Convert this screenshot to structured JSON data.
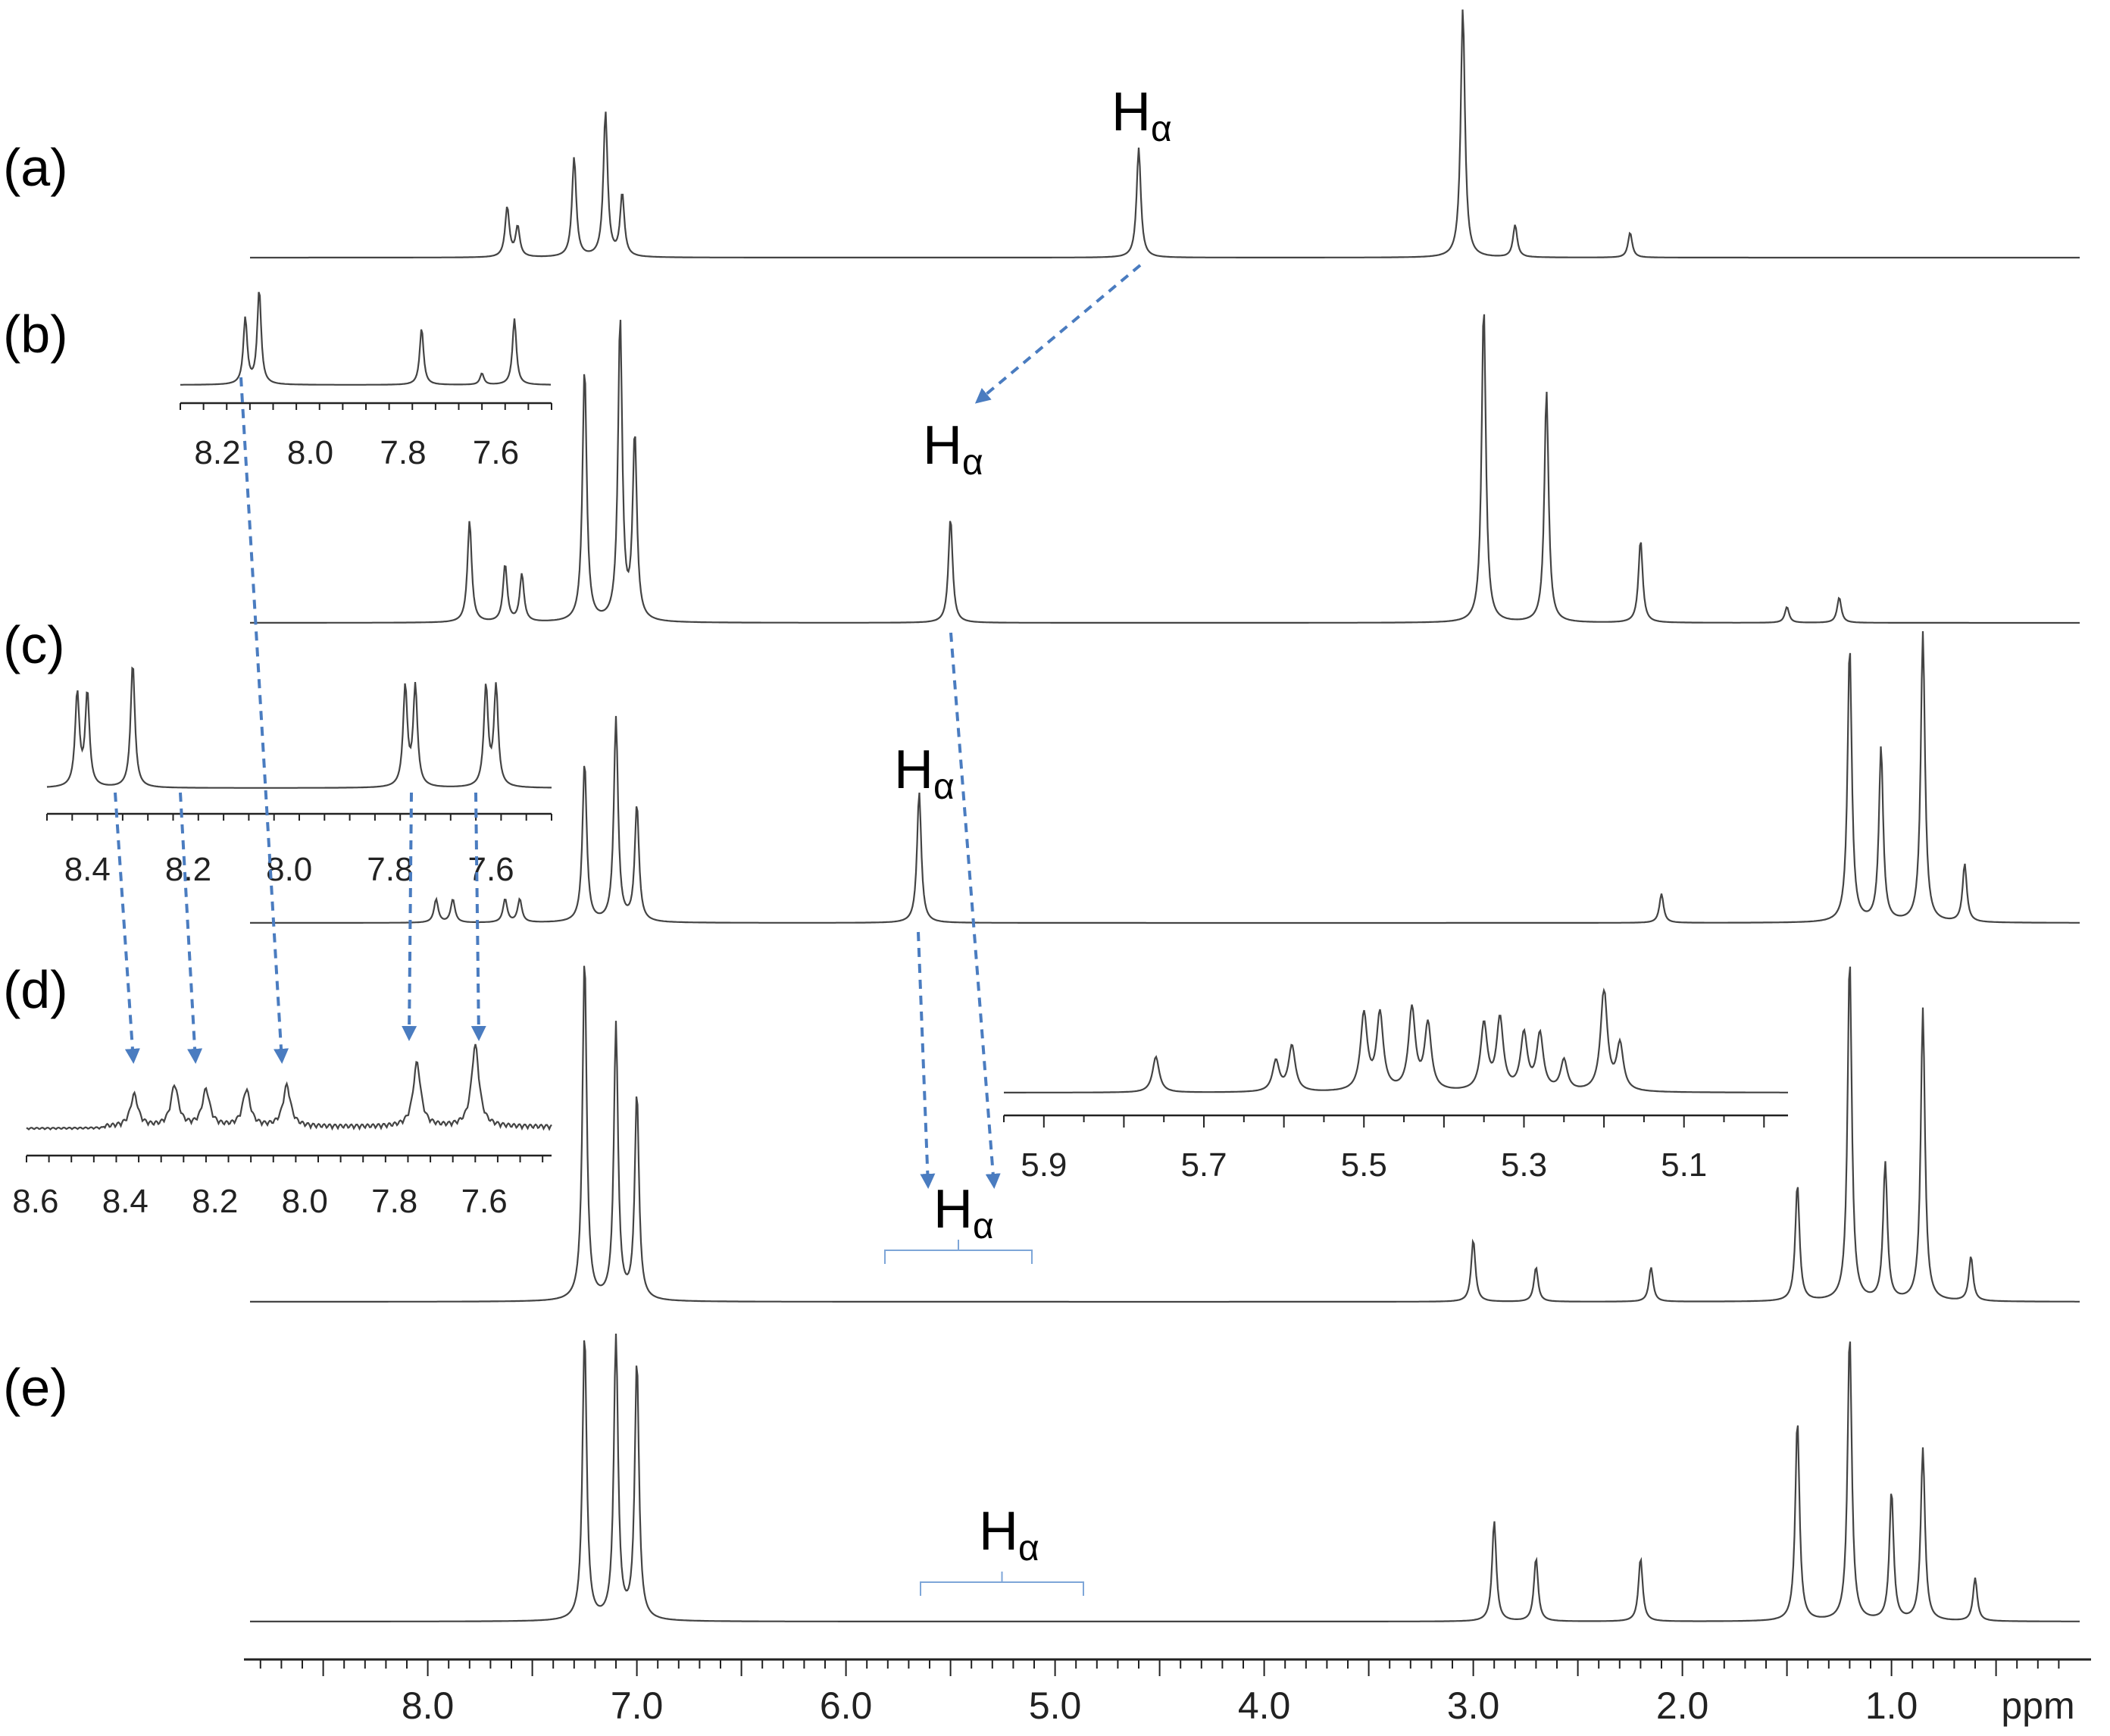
{
  "chart_data": {
    "type": "line",
    "title": "",
    "xlabel": "ppm",
    "x_reversed": true,
    "xlim": [
      8.85,
      0.1
    ],
    "grid": false,
    "main_axis": {
      "unit": "ppm",
      "ticks": [
        {
          "value": 8.0,
          "label": "8.0"
        },
        {
          "value": 7.0,
          "label": "7.0"
        },
        {
          "value": 6.0,
          "label": "6.0"
        },
        {
          "value": 5.0,
          "label": "5.0"
        },
        {
          "value": 4.0,
          "label": "4.0"
        },
        {
          "value": 3.0,
          "label": "3.0"
        },
        {
          "value": 2.0,
          "label": "2.0"
        },
        {
          "value": 1.0,
          "label": "1.0"
        }
      ]
    },
    "series": [
      {
        "name": "(a)",
        "peaks": [
          {
            "ppm": 7.62,
            "height": 0.2
          },
          {
            "ppm": 7.57,
            "height": 0.12
          },
          {
            "ppm": 7.3,
            "height": 0.4
          },
          {
            "ppm": 7.15,
            "height": 0.58
          },
          {
            "ppm": 7.07,
            "height": 0.25
          },
          {
            "ppm": 4.6,
            "height": 0.44
          },
          {
            "ppm": 3.05,
            "height": 1.0
          },
          {
            "ppm": 2.8,
            "height": 0.13
          },
          {
            "ppm": 2.25,
            "height": 0.1
          }
        ]
      },
      {
        "name": "(b)",
        "peaks": [
          {
            "ppm": 7.8,
            "height": 0.32
          },
          {
            "ppm": 7.63,
            "height": 0.18
          },
          {
            "ppm": 7.55,
            "height": 0.15
          },
          {
            "ppm": 7.25,
            "height": 0.8
          },
          {
            "ppm": 7.08,
            "height": 0.95
          },
          {
            "ppm": 7.01,
            "height": 0.58
          },
          {
            "ppm": 5.5,
            "height": 0.33
          },
          {
            "ppm": 2.95,
            "height": 1.0
          },
          {
            "ppm": 2.65,
            "height": 0.73
          },
          {
            "ppm": 2.2,
            "height": 0.26
          },
          {
            "ppm": 1.5,
            "height": 0.05
          },
          {
            "ppm": 1.25,
            "height": 0.08
          }
        ]
      },
      {
        "name": "(c)",
        "peaks": [
          {
            "ppm": 7.96,
            "height": 0.08
          },
          {
            "ppm": 7.88,
            "height": 0.08
          },
          {
            "ppm": 7.63,
            "height": 0.08
          },
          {
            "ppm": 7.56,
            "height": 0.08
          },
          {
            "ppm": 7.25,
            "height": 0.55
          },
          {
            "ppm": 7.1,
            "height": 0.7
          },
          {
            "ppm": 7.0,
            "height": 0.4
          },
          {
            "ppm": 5.65,
            "height": 0.45
          },
          {
            "ppm": 2.1,
            "height": 0.1
          },
          {
            "ppm": 1.2,
            "height": 0.95
          },
          {
            "ppm": 1.05,
            "height": 0.6
          },
          {
            "ppm": 0.85,
            "height": 1.0
          },
          {
            "ppm": 0.65,
            "height": 0.2
          }
        ]
      },
      {
        "name": "(d)",
        "peaks": [
          {
            "ppm": 7.25,
            "height": 1.0
          },
          {
            "ppm": 7.1,
            "height": 0.8
          },
          {
            "ppm": 7.0,
            "height": 0.6
          },
          {
            "ppm": 3.0,
            "height": 0.18
          },
          {
            "ppm": 2.7,
            "height": 0.1
          },
          {
            "ppm": 2.15,
            "height": 0.1
          },
          {
            "ppm": 1.45,
            "height": 0.34
          },
          {
            "ppm": 1.2,
            "height": 1.0
          },
          {
            "ppm": 1.03,
            "height": 0.4
          },
          {
            "ppm": 0.85,
            "height": 0.85
          },
          {
            "ppm": 0.62,
            "height": 0.13
          }
        ]
      },
      {
        "name": "(e)",
        "peaks": [
          {
            "ppm": 7.25,
            "height": 1.0
          },
          {
            "ppm": 7.1,
            "height": 1.0
          },
          {
            "ppm": 7.0,
            "height": 0.9
          },
          {
            "ppm": 2.9,
            "height": 0.35
          },
          {
            "ppm": 2.7,
            "height": 0.22
          },
          {
            "ppm": 2.2,
            "height": 0.22
          },
          {
            "ppm": 1.45,
            "height": 0.7
          },
          {
            "ppm": 1.2,
            "height": 1.0
          },
          {
            "ppm": 1.0,
            "height": 0.45
          },
          {
            "ppm": 0.85,
            "height": 0.6
          },
          {
            "ppm": 0.6,
            "height": 0.15
          }
        ]
      }
    ],
    "annotations": [
      {
        "text": "H",
        "sub": "α",
        "series": "(a)",
        "ppm": 4.6
      },
      {
        "text": "H",
        "sub": "α",
        "series": "(b)",
        "ppm": 5.5
      },
      {
        "text": "H",
        "sub": "α",
        "series": "(c)",
        "ppm": 5.65
      },
      {
        "text": "H",
        "sub": "α",
        "series": "(d)",
        "ppm_range": [
          5.85,
          5.1
        ]
      },
      {
        "text": "H",
        "sub": "α",
        "series": "(e)",
        "ppm_range": [
          5.65,
          4.9
        ]
      }
    ],
    "insets": [
      {
        "series": "(b)",
        "xlim": [
          8.28,
          7.48
        ],
        "ticks": [
          {
            "value": 8.2,
            "label": "8.2"
          },
          {
            "value": 8.0,
            "label": "8.0"
          },
          {
            "value": 7.8,
            "label": "7.8"
          },
          {
            "value": 7.6,
            "label": "7.6"
          }
        ],
        "peaks": [
          {
            "ppm": 8.14,
            "height": 0.7
          },
          {
            "ppm": 8.11,
            "height": 1.0
          },
          {
            "ppm": 7.76,
            "height": 0.6
          },
          {
            "ppm": 7.56,
            "height": 0.7
          },
          {
            "ppm": 7.63,
            "height": 0.12
          }
        ]
      },
      {
        "series": "(c)",
        "xlim": [
          8.48,
          7.48
        ],
        "ticks": [
          {
            "value": 8.4,
            "label": "8.4"
          },
          {
            "value": 8.2,
            "label": "8.2"
          },
          {
            "value": 8.0,
            "label": "8.0"
          },
          {
            "value": 7.8,
            "label": "7.8"
          },
          {
            "value": 7.6,
            "label": "7.6"
          }
        ],
        "peaks": [
          {
            "ppm": 8.42,
            "height": 0.75
          },
          {
            "ppm": 8.4,
            "height": 0.75
          },
          {
            "ppm": 8.31,
            "height": 1.0
          },
          {
            "ppm": 7.77,
            "height": 0.8
          },
          {
            "ppm": 7.75,
            "height": 0.8
          },
          {
            "ppm": 7.61,
            "height": 0.8
          },
          {
            "ppm": 7.59,
            "height": 0.8
          }
        ]
      },
      {
        "series": "(d)",
        "xlim": [
          8.62,
          7.45
        ],
        "ticks": [
          {
            "value": 8.6,
            "label": "8.6"
          },
          {
            "value": 8.4,
            "label": "8.4"
          },
          {
            "value": 8.2,
            "label": "8.2"
          },
          {
            "value": 8.0,
            "label": "8.0"
          },
          {
            "value": 7.8,
            "label": "7.8"
          },
          {
            "value": 7.6,
            "label": "7.6"
          }
        ],
        "peaks": [
          {
            "ppm": 8.38,
            "height": 0.35
          },
          {
            "ppm": 8.29,
            "height": 0.45
          },
          {
            "ppm": 8.22,
            "height": 0.4
          },
          {
            "ppm": 8.13,
            "height": 0.4
          },
          {
            "ppm": 8.04,
            "height": 0.45
          },
          {
            "ppm": 7.75,
            "height": 0.7
          },
          {
            "ppm": 7.62,
            "height": 0.9
          }
        ]
      },
      {
        "series": "(d)",
        "xlim": [
          5.95,
          4.97
        ],
        "ticks": [
          {
            "value": 5.9,
            "label": "5.9"
          },
          {
            "value": 5.7,
            "label": "5.7"
          },
          {
            "value": 5.5,
            "label": "5.5"
          },
          {
            "value": 5.3,
            "label": "5.3"
          },
          {
            "value": 5.1,
            "label": "5.1"
          }
        ],
        "peaks": [
          {
            "ppm": 5.76,
            "height": 0.35
          },
          {
            "ppm": 5.61,
            "height": 0.3
          },
          {
            "ppm": 5.59,
            "height": 0.45
          },
          {
            "ppm": 5.5,
            "height": 0.75
          },
          {
            "ppm": 5.48,
            "height": 0.75
          },
          {
            "ppm": 5.44,
            "height": 0.8
          },
          {
            "ppm": 5.42,
            "height": 0.65
          },
          {
            "ppm": 5.35,
            "height": 0.65
          },
          {
            "ppm": 5.33,
            "height": 0.7
          },
          {
            "ppm": 5.3,
            "height": 0.55
          },
          {
            "ppm": 5.28,
            "height": 0.55
          },
          {
            "ppm": 5.25,
            "height": 0.3
          },
          {
            "ppm": 5.2,
            "height": 1.0
          },
          {
            "ppm": 5.18,
            "height": 0.45
          }
        ]
      }
    ]
  },
  "colors": {
    "spectrum": "#444444",
    "arrow": "#4a7cc0",
    "bracket": "#7ea6d8",
    "axis": "#222222"
  }
}
